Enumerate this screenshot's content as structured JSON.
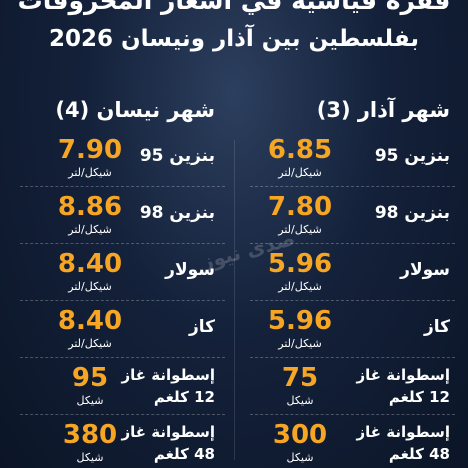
{
  "header": {
    "title": "قفزة قياسية في أسعار المحروقات",
    "subtitle": "بفلسطين بين آذار ونيسان 2026"
  },
  "watermark": "صدى نيوز",
  "columns": [
    {
      "heading": "شهر آذار (3)",
      "rows": [
        {
          "label": "بنزين 95",
          "value": "6.85",
          "unit": "شيكل/لتر"
        },
        {
          "label": "بنزين 98",
          "value": "7.80",
          "unit": "شيكل/لتر"
        },
        {
          "label": "سولار",
          "value": "5.96",
          "unit": "شيكل/لتر"
        },
        {
          "label": "كاز",
          "value": "5.96",
          "unit": "شيكل/لتر"
        },
        {
          "label": "إسطوانة غاز",
          "sublabel": "12 كلغم",
          "value": "75",
          "unit": "شيكل"
        },
        {
          "label": "إسطوانة غاز",
          "sublabel": "48 كلغم",
          "value": "300",
          "unit": "شيكل"
        }
      ]
    },
    {
      "heading": "شهر نيسان (4)",
      "rows": [
        {
          "label": "بنزين 95",
          "value": "7.90",
          "unit": "شيكل/لتر"
        },
        {
          "label": "بنزين 98",
          "value": "8.86",
          "unit": "شيكل/لتر"
        },
        {
          "label": "سولار",
          "value": "8.40",
          "unit": "شيكل/لتر"
        },
        {
          "label": "كاز",
          "value": "8.40",
          "unit": "شيكل/لتر"
        },
        {
          "label": "إسطوانة غاز",
          "sublabel": "12 كلغم",
          "value": "95",
          "unit": "شيكل"
        },
        {
          "label": "إسطوانة غاز",
          "sublabel": "48 كلغم",
          "value": "380",
          "unit": "شيكل"
        }
      ]
    }
  ]
}
